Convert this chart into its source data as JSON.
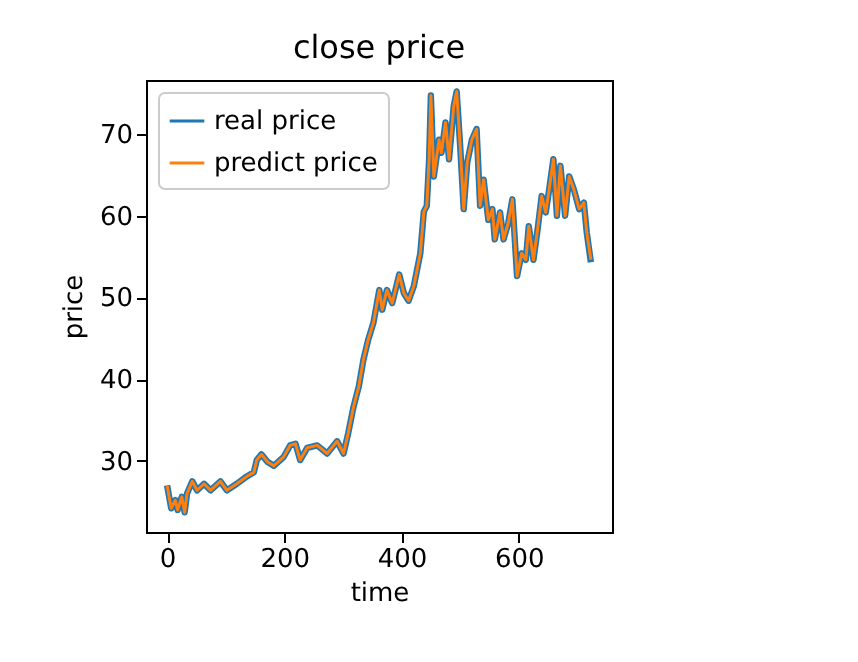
{
  "chart_data": {
    "type": "line",
    "title": "close price",
    "xlabel": "time",
    "ylabel": "price",
    "x": [
      0,
      7,
      14,
      18,
      25,
      30,
      34,
      43,
      51,
      63,
      74,
      91,
      102,
      119,
      136,
      148,
      153,
      161,
      171,
      182,
      199,
      210,
      219,
      227,
      239,
      256,
      273,
      290,
      301,
      309,
      318,
      327,
      335,
      343,
      352,
      362,
      367,
      375,
      384,
      396,
      404,
      412,
      421,
      432,
      438,
      443,
      447,
      450,
      455,
      464,
      468,
      475,
      481,
      489,
      494,
      500,
      506,
      512,
      520,
      528,
      534,
      540,
      548,
      555,
      559,
      568,
      574,
      582,
      589,
      597,
      605,
      612,
      617,
      625,
      632,
      639,
      646,
      651,
      659,
      665,
      671,
      679,
      686,
      694,
      703,
      711,
      716,
      723
    ],
    "series": [
      {
        "name": "real price",
        "color": "#1f77b4",
        "values": [
          27.0,
          24.2,
          25.2,
          24.0,
          25.6,
          23.7,
          26.0,
          27.5,
          26.4,
          27.2,
          26.4,
          27.5,
          26.4,
          27.2,
          28.1,
          28.6,
          30.1,
          30.8,
          29.9,
          29.4,
          30.5,
          31.9,
          32.1,
          30.1,
          31.6,
          31.9,
          30.9,
          32.4,
          30.9,
          33.4,
          36.6,
          39.1,
          42.4,
          44.8,
          46.9,
          50.9,
          48.5,
          50.9,
          49.3,
          52.8,
          50.5,
          49.6,
          51.4,
          55.4,
          60.5,
          61.2,
          66.9,
          74.7,
          64.8,
          69.3,
          67.7,
          71.4,
          66.9,
          73.4,
          75.2,
          68.5,
          60.8,
          66.5,
          69.3,
          70.6,
          61.2,
          64.4,
          59.5,
          60.8,
          57.1,
          60.4,
          57.1,
          59.1,
          62.0,
          52.6,
          55.4,
          54.6,
          58.7,
          54.6,
          58.3,
          62.4,
          60.4,
          62.8,
          66.9,
          60.0,
          66.1,
          60.0,
          64.8,
          63.2,
          60.8,
          61.6,
          57.9,
          54.3
        ]
      },
      {
        "name": "predict price",
        "color": "#ff7f0e",
        "values": [
          27.0,
          24.2,
          25.2,
          24.0,
          25.6,
          23.7,
          26.0,
          27.5,
          26.4,
          27.2,
          26.4,
          27.5,
          26.4,
          27.2,
          28.1,
          28.6,
          30.1,
          30.8,
          29.9,
          29.4,
          30.5,
          31.9,
          32.1,
          30.1,
          31.6,
          31.9,
          30.9,
          32.4,
          30.9,
          33.4,
          36.6,
          39.1,
          42.4,
          44.8,
          46.9,
          50.9,
          48.5,
          50.9,
          49.3,
          52.8,
          50.5,
          49.6,
          51.4,
          55.4,
          60.5,
          61.2,
          66.9,
          74.7,
          64.8,
          69.3,
          67.7,
          71.4,
          66.9,
          73.4,
          75.2,
          68.5,
          60.8,
          66.5,
          69.3,
          70.6,
          61.2,
          64.4,
          59.5,
          60.8,
          57.1,
          60.4,
          57.1,
          59.1,
          62.0,
          52.6,
          55.4,
          54.6,
          58.7,
          54.6,
          58.3,
          62.4,
          60.4,
          62.8,
          66.9,
          60.0,
          66.1,
          60.0,
          64.8,
          63.2,
          60.8,
          61.6,
          57.9,
          54.6
        ]
      }
    ],
    "xlim": [
      -36,
      759
    ],
    "ylim": [
      21.3,
      76.6
    ],
    "xticks": [
      0,
      200,
      400,
      600
    ],
    "yticks": [
      30,
      40,
      50,
      60,
      70
    ],
    "legend": "top left",
    "grid": false
  }
}
